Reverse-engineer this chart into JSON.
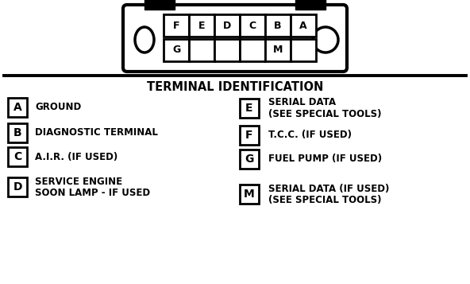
{
  "title": "TERMINAL IDENTIFICATION",
  "title_fontsize": 10.5,
  "bg_color": "#ffffff",
  "text_color": "#000000",
  "left_items": [
    {
      "label": "A",
      "desc": "GROUND",
      "desc2": ""
    },
    {
      "label": "B",
      "desc": "DIAGNOSTIC TERMINAL",
      "desc2": ""
    },
    {
      "label": "C",
      "desc": "A.I.R. (IF USED)",
      "desc2": ""
    },
    {
      "label": "D",
      "desc": "SERVICE ENGINE",
      "desc2": "SOON LAMP - IF USED"
    }
  ],
  "right_items": [
    {
      "label": "E",
      "desc": "SERIAL DATA",
      "desc2": "(SEE SPECIAL TOOLS)"
    },
    {
      "label": "F",
      "desc": "T.C.C. (IF USED)",
      "desc2": ""
    },
    {
      "label": "G",
      "desc": "FUEL PUMP (IF USED)",
      "desc2": ""
    },
    {
      "label": "M",
      "desc": "SERIAL DATA (IF USED)",
      "desc2": "(SEE SPECIAL TOOLS)"
    }
  ],
  "connector_labels_top": [
    "F",
    "E",
    "D",
    "C",
    "B",
    "A"
  ],
  "connector_labels_bot": [
    "G",
    "",
    "",
    "",
    "M",
    ""
  ],
  "figsize": [
    5.92,
    3.57
  ],
  "dpi": 100
}
